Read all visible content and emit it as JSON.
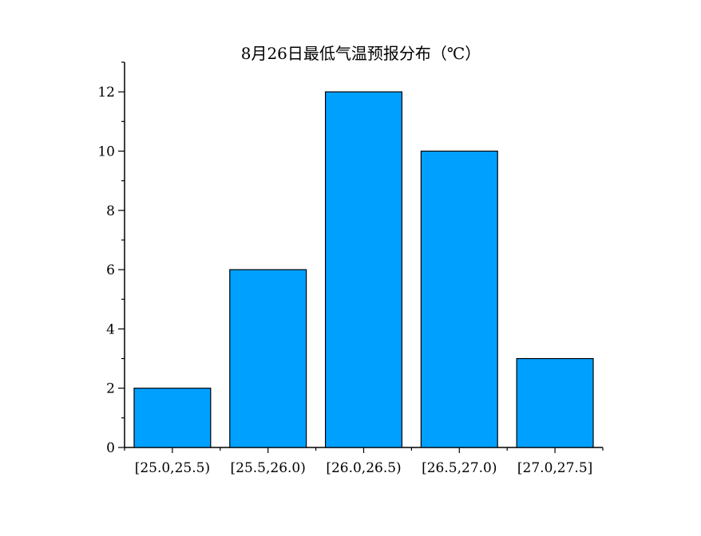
{
  "chart_data": {
    "type": "bar",
    "title": "8月26日最低气温预报分布（℃）",
    "xlabel": "",
    "ylabel": "",
    "categories": [
      "[25.0,25.5)",
      "[25.5,26.0)",
      "[26.0,26.5)",
      "[26.5,27.0)",
      "[27.0,27.5]"
    ],
    "values": [
      2,
      6,
      12,
      10,
      3
    ],
    "ylim": [
      0,
      13
    ],
    "yticks": [
      "0",
      "2",
      "4",
      "6",
      "8",
      "10",
      "12"
    ],
    "grid": false,
    "legend": "none",
    "bar_color": "#00A0FF",
    "edge_color": "#000000"
  }
}
